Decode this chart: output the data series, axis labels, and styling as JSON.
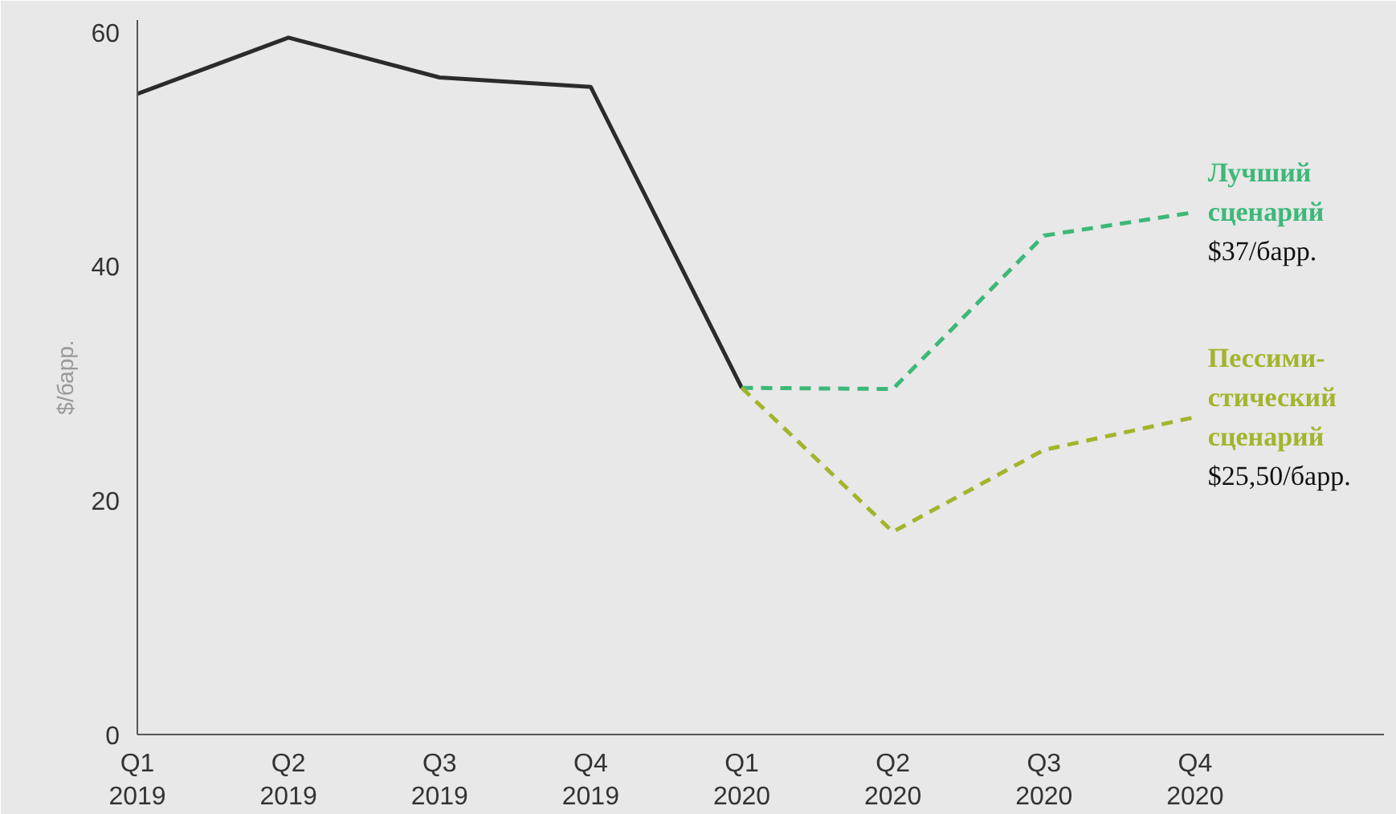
{
  "chart_data": {
    "type": "line",
    "ylabel": "$/барр.",
    "categories": [
      "Q1\n2019",
      "Q2\n2019",
      "Q3\n2019",
      "Q4\n2019",
      "Q1\n2020",
      "Q2\n2020",
      "Q3\n2020",
      "Q4\n2020"
    ],
    "series": [
      {
        "color": "#2b2b2b",
        "line_style": "solid",
        "values": [
          54.7,
          59.5,
          56.1,
          55.3,
          29.6,
          null,
          null,
          null
        ]
      },
      {
        "name": "Лучший сценарий",
        "color": "#3cb878",
        "line_style": "dashed",
        "values": [
          null,
          null,
          null,
          null,
          29.6,
          29.5,
          42.6,
          44.6
        ]
      },
      {
        "name": "Пессими- стический сценарий",
        "color": "#a4b42c",
        "line_style": "dashed",
        "values": [
          null,
          null,
          null,
          null,
          29.6,
          17.3,
          24.3,
          27.1
        ]
      }
    ],
    "annotations": [
      "$37/барр.",
      "$25,50/барр."
    ],
    "ylim": [
      0,
      61
    ],
    "yticks": [
      0,
      20,
      40,
      60
    ],
    "marker": "none"
  }
}
